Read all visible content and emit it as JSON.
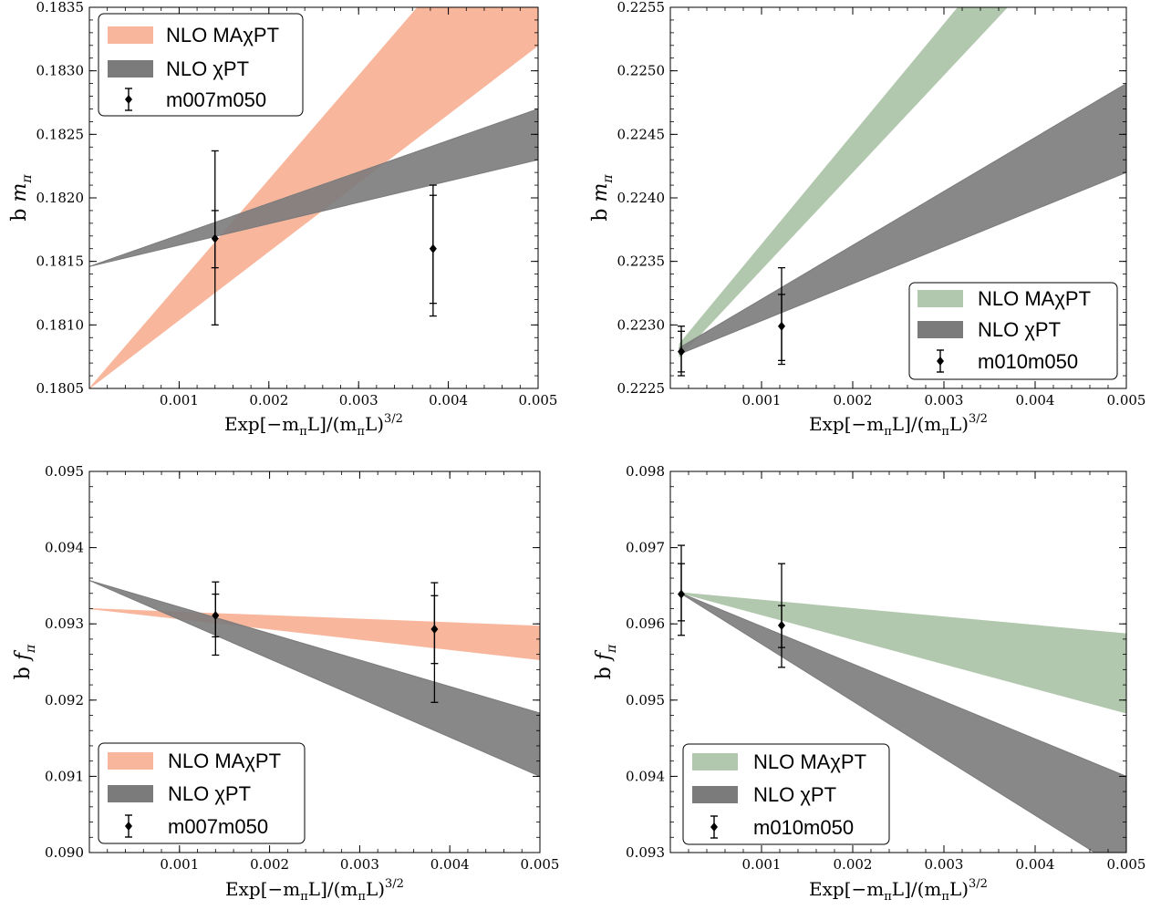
{
  "colors": {
    "ma_band": "#f8b79d",
    "ma_band_green": "#b2c8ae",
    "chi_band": "#7b7b7c",
    "point": "#000000"
  },
  "chart_data": [
    {
      "id": "top-left",
      "type": "area",
      "ylabel_main": "b",
      "ylabel_sym": "m",
      "ylabel_sub": "π",
      "xlabel": "Exp[−mπL]/(mπL)3/2",
      "xlim": [
        0,
        0.005
      ],
      "ylim": [
        0.1805,
        0.1835
      ],
      "xticks": [
        0.001,
        0.002,
        0.003,
        0.004,
        0.005
      ],
      "xtick_labels": [
        "0.001",
        "0.002",
        "0.003",
        "0.004",
        "0.005"
      ],
      "yticks": [
        0.1805,
        0.181,
        0.1815,
        0.182,
        0.1825,
        0.183,
        0.1835
      ],
      "ytick_labels": [
        "0.1805",
        "0.1810",
        "0.1815",
        "0.1820",
        "0.1825",
        "0.1830",
        "0.1835"
      ],
      "legend_position": "top-left",
      "bands": [
        {
          "name": "NLO MAχPT",
          "color": "ma_band",
          "x0": 0,
          "y0_low": 0.1805,
          "y0_high": 0.1805,
          "x1": 0.005,
          "y1_low": 0.1832,
          "y1_high": 0.1846
        },
        {
          "name": "NLO χPT",
          "color": "chi_band",
          "x0": 0,
          "y0_low": 0.18146,
          "y0_high": 0.18146,
          "x1": 0.005,
          "y1_low": 0.1823,
          "y1_high": 0.1827
        }
      ],
      "points": [
        {
          "x": 0.0014,
          "y": 0.18168,
          "inner_err": [
            0.18145,
            0.1819
          ],
          "outer_err": [
            0.181,
            0.18237
          ]
        },
        {
          "x": 0.00383,
          "y": 0.1816,
          "inner_err": [
            0.18117,
            0.18202
          ],
          "outer_err": [
            0.18107,
            0.1821
          ]
        }
      ],
      "legend_series": "m007m050"
    },
    {
      "id": "top-right",
      "type": "area",
      "ylabel_main": "b",
      "ylabel_sym": "m",
      "ylabel_sub": "π",
      "xlabel": "Exp[−mπL]/(mπL)3/2",
      "xlim": [
        0,
        0.005
      ],
      "ylim": [
        0.2225,
        0.2255
      ],
      "xticks": [
        0.001,
        0.002,
        0.003,
        0.004,
        0.005
      ],
      "xtick_labels": [
        "0.001",
        "0.002",
        "0.003",
        "0.004",
        "0.005"
      ],
      "yticks": [
        0.2225,
        0.223,
        0.2235,
        0.224,
        0.2245,
        0.225,
        0.2255
      ],
      "ytick_labels": [
        "0.2225",
        "0.2230",
        "0.2235",
        "0.2240",
        "0.2245",
        "0.2250",
        "0.2255"
      ],
      "legend_position": "bottom-right",
      "bands": [
        {
          "name": "NLO MAχPT",
          "color": "ma_band_green",
          "x0": 0.0001,
          "y0_low": 0.22275,
          "y0_high": 0.22285,
          "x1": 0.005,
          "y1_low": 0.2265,
          "y1_high": 0.2271
        },
        {
          "name": "NLO χPT",
          "color": "chi_band",
          "x0": 0.0001,
          "y0_low": 0.22277,
          "y0_high": 0.22282,
          "x1": 0.005,
          "y1_low": 0.2242,
          "y1_high": 0.2249
        }
      ],
      "points": [
        {
          "x": 0.00012,
          "y": 0.22279,
          "inner_err": [
            0.22263,
            0.22295
          ],
          "outer_err": [
            0.2226,
            0.22299
          ]
        },
        {
          "x": 0.00122,
          "y": 0.22299,
          "inner_err": [
            0.22272,
            0.22324
          ],
          "outer_err": [
            0.22269,
            0.22345
          ]
        }
      ],
      "legend_series": "m010m050"
    },
    {
      "id": "bottom-left",
      "type": "area",
      "ylabel_main": "b",
      "ylabel_sym": "f",
      "ylabel_sub": "π",
      "xlabel": "Exp[−mπL]/(mπL)3/2",
      "xlim": [
        0,
        0.005
      ],
      "ylim": [
        0.09,
        0.095
      ],
      "xticks": [
        0.001,
        0.002,
        0.003,
        0.004,
        0.005
      ],
      "xtick_labels": [
        "0.001",
        "0.002",
        "0.003",
        "0.004",
        "0.005"
      ],
      "yticks": [
        0.09,
        0.091,
        0.092,
        0.093,
        0.094,
        0.095
      ],
      "ytick_labels": [
        "0.090",
        "0.091",
        "0.092",
        "0.093",
        "0.094",
        "0.095"
      ],
      "legend_position": "bottom-left",
      "bands": [
        {
          "name": "NLO MAχPT",
          "color": "ma_band",
          "x0": 0,
          "y0_low": 0.0932,
          "y0_high": 0.0932,
          "x1": 0.005,
          "y1_low": 0.09253,
          "y1_high": 0.09297
        },
        {
          "name": "NLO χPT",
          "color": "chi_band",
          "x0": 0,
          "y0_low": 0.09357,
          "y0_high": 0.09357,
          "x1": 0.005,
          "y1_low": 0.091,
          "y1_high": 0.09183
        }
      ],
      "points": [
        {
          "x": 0.0014,
          "y": 0.09311,
          "inner_err": [
            0.09283,
            0.09339
          ],
          "outer_err": [
            0.09259,
            0.09355
          ]
        },
        {
          "x": 0.00383,
          "y": 0.09293,
          "inner_err": [
            0.09248,
            0.09337
          ],
          "outer_err": [
            0.09197,
            0.09354
          ]
        }
      ],
      "legend_series": "m007m050"
    },
    {
      "id": "bottom-right",
      "type": "area",
      "ylabel_main": "b",
      "ylabel_sym": "f",
      "ylabel_sub": "π",
      "xlabel": "Exp[−mπL]/(mπL)3/2",
      "xlim": [
        0,
        0.005
      ],
      "ylim": [
        0.093,
        0.098
      ],
      "xticks": [
        0.001,
        0.002,
        0.003,
        0.004,
        0.005
      ],
      "xtick_labels": [
        "0.001",
        "0.002",
        "0.003",
        "0.004",
        "0.005"
      ],
      "yticks": [
        0.093,
        0.094,
        0.095,
        0.096,
        0.097,
        0.098
      ],
      "ytick_labels": [
        "0.093",
        "0.094",
        "0.095",
        "0.096",
        "0.097",
        "0.098"
      ],
      "legend_position": "bottom-left",
      "bands": [
        {
          "name": "NLO MAχPT",
          "color": "ma_band_green",
          "x0": 0.0001,
          "y0_low": 0.09641,
          "y0_high": 0.09641,
          "x1": 0.005,
          "y1_low": 0.09483,
          "y1_high": 0.09587
        },
        {
          "name": "NLO χPT",
          "color": "chi_band",
          "x0": 0.0001,
          "y0_low": 0.09641,
          "y0_high": 0.09641,
          "x1": 0.005,
          "y1_low": 0.09274,
          "y1_high": 0.094
        }
      ],
      "points": [
        {
          "x": 0.00012,
          "y": 0.09639,
          "inner_err": [
            0.09604,
            0.09679
          ],
          "outer_err": [
            0.09585,
            0.09703
          ]
        },
        {
          "x": 0.00122,
          "y": 0.09598,
          "inner_err": [
            0.09569,
            0.09624
          ],
          "outer_err": [
            0.09543,
            0.09679
          ]
        }
      ],
      "legend_series": "m010m050"
    }
  ]
}
